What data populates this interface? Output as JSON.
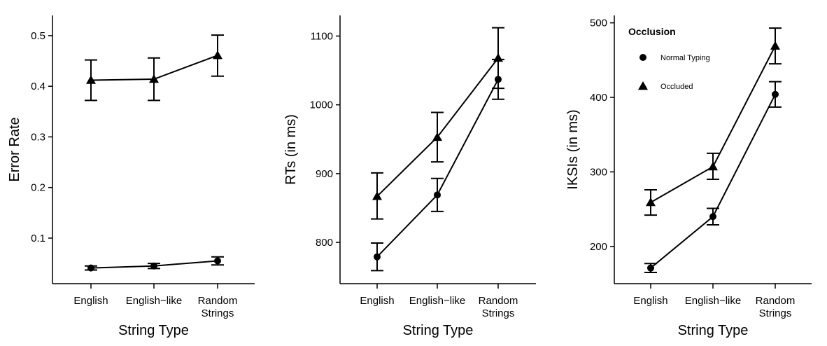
{
  "chart_data": [
    {
      "type": "line",
      "xlabel": "String Type",
      "ylabel": "Error Rate",
      "categories": [
        "English",
        "English−like",
        "Random\nStrings"
      ],
      "ylim": [
        0.01,
        0.54
      ],
      "yticks": [
        0.1,
        0.2,
        0.3,
        0.4,
        0.5
      ],
      "yticklabels": [
        "0.1",
        "0.2",
        "0.3",
        "0.4",
        "0.5"
      ],
      "series": [
        {
          "marker": "circle",
          "values": [
            0.041,
            0.045,
            0.055
          ],
          "err_low": [
            0.037,
            0.04,
            0.047
          ],
          "err_high": [
            0.045,
            0.05,
            0.063
          ]
        },
        {
          "marker": "triangle",
          "values": [
            0.412,
            0.414,
            0.461
          ],
          "err_low": [
            0.372,
            0.372,
            0.42
          ],
          "err_high": [
            0.452,
            0.456,
            0.501
          ]
        }
      ]
    },
    {
      "type": "line",
      "xlabel": "String Type",
      "ylabel": "RTs (in ms)",
      "categories": [
        "English",
        "English−like",
        "Random\nStrings"
      ],
      "ylim": [
        740,
        1130
      ],
      "yticks": [
        800,
        900,
        1000,
        1100
      ],
      "yticklabels": [
        "800",
        "900",
        "1000",
        "1100"
      ],
      "series": [
        {
          "marker": "circle",
          "values": [
            779,
            869,
            1037
          ],
          "err_low": [
            759,
            845,
            1008
          ],
          "err_high": [
            799,
            893,
            1066
          ]
        },
        {
          "marker": "triangle",
          "values": [
            867,
            953,
            1068
          ],
          "err_low": [
            834,
            917,
            1024
          ],
          "err_high": [
            901,
            989,
            1112
          ]
        }
      ]
    },
    {
      "type": "line",
      "xlabel": "String Type",
      "ylabel": "IKSIs (in ms)",
      "categories": [
        "English",
        "English−like",
        "Random\nStrings"
      ],
      "ylim": [
        150,
        510
      ],
      "yticks": [
        200,
        300,
        400,
        500
      ],
      "yticklabels": [
        "200",
        "300",
        "400",
        "500"
      ],
      "legend": {
        "title": "Occlusion",
        "position": "top-left",
        "entries": [
          {
            "marker": "circle",
            "label": "Normal Typing"
          },
          {
            "marker": "triangle",
            "label": "Occluded"
          }
        ]
      },
      "series": [
        {
          "name": "Normal Typing",
          "marker": "circle",
          "values": [
            171,
            240,
            404
          ],
          "err_low": [
            165,
            229,
            387
          ],
          "err_high": [
            177,
            251,
            421
          ]
        },
        {
          "name": "Occluded",
          "marker": "triangle",
          "values": [
            259,
            307,
            469
          ],
          "err_low": [
            242,
            290,
            445
          ],
          "err_high": [
            276,
            325,
            493
          ]
        }
      ]
    }
  ]
}
